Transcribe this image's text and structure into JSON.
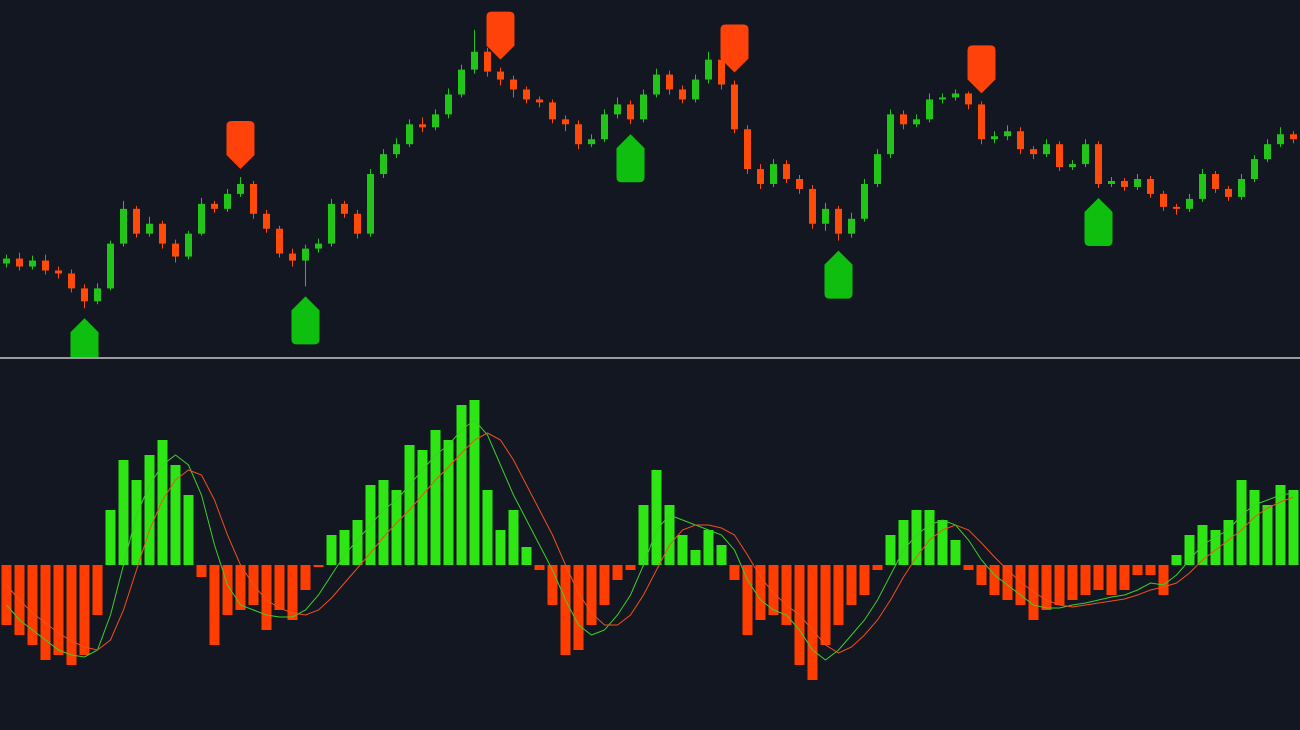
{
  "chart_data": [
    {
      "type": "candlestick",
      "up_color": "#22c41a",
      "down_color": "#ff4a0a",
      "buy_color": "#0fbf0f",
      "sell_color": "#ff420a",
      "ylim": [
        0,
        360
      ],
      "open": [
        95,
        100,
        92,
        98,
        88,
        85,
        70,
        57,
        70,
        115,
        150,
        125,
        135,
        115,
        102,
        125,
        155,
        150,
        165,
        175,
        145,
        130,
        105,
        98,
        110,
        115,
        155,
        145,
        125,
        185,
        205,
        215,
        235,
        232,
        245,
        265,
        290,
        308,
        288,
        280,
        270,
        260,
        257,
        240,
        235,
        215,
        220,
        245,
        255,
        240,
        265,
        285,
        270,
        260,
        280,
        300,
        275,
        230,
        190,
        175,
        195,
        180,
        170,
        135,
        150,
        125,
        140,
        175,
        205,
        245,
        235,
        240,
        260,
        262,
        266,
        255,
        220,
        223,
        228,
        210,
        205,
        215,
        192,
        195,
        215,
        175,
        178,
        172,
        180,
        165,
        152,
        150,
        160,
        185,
        170,
        162,
        180,
        200,
        215,
        225
      ],
      "close": [
        100,
        92,
        98,
        88,
        85,
        70,
        57,
        70,
        115,
        150,
        125,
        135,
        115,
        102,
        125,
        155,
        150,
        165,
        175,
        145,
        130,
        105,
        98,
        110,
        115,
        155,
        145,
        125,
        185,
        205,
        215,
        235,
        232,
        245,
        265,
        290,
        308,
        288,
        280,
        270,
        260,
        257,
        240,
        235,
        215,
        220,
        245,
        255,
        240,
        265,
        285,
        270,
        260,
        280,
        300,
        275,
        230,
        190,
        175,
        195,
        180,
        170,
        135,
        150,
        125,
        140,
        175,
        205,
        245,
        235,
        240,
        260,
        262,
        266,
        255,
        220,
        223,
        228,
        210,
        205,
        215,
        192,
        195,
        215,
        175,
        178,
        172,
        180,
        165,
        152,
        150,
        160,
        185,
        170,
        162,
        180,
        200,
        215,
        225,
        220
      ],
      "high": [
        104,
        106,
        103,
        104,
        92,
        89,
        74,
        75,
        118,
        158,
        153,
        142,
        138,
        119,
        128,
        161,
        158,
        170,
        182,
        178,
        149,
        133,
        110,
        114,
        120,
        160,
        158,
        149,
        190,
        210,
        221,
        240,
        242,
        250,
        271,
        295,
        330,
        312,
        292,
        284,
        273,
        263,
        260,
        244,
        239,
        225,
        250,
        262,
        259,
        270,
        291,
        289,
        274,
        285,
        308,
        304,
        279,
        234,
        195,
        200,
        199,
        184,
        174,
        156,
        153,
        146,
        180,
        210,
        250,
        249,
        245,
        266,
        266,
        270,
        268,
        258,
        228,
        234,
        232,
        213,
        220,
        218,
        199,
        220,
        218,
        182,
        181,
        185,
        183,
        168,
        155,
        165,
        190,
        188,
        173,
        185,
        204,
        220,
        232,
        228
      ],
      "low": [
        91,
        88,
        89,
        84,
        80,
        66,
        50,
        54,
        68,
        112,
        121,
        122,
        110,
        96,
        99,
        123,
        146,
        147,
        162,
        140,
        126,
        101,
        92,
        72,
        106,
        112,
        141,
        120,
        122,
        181,
        201,
        212,
        227,
        229,
        241,
        262,
        286,
        283,
        274,
        262,
        256,
        252,
        236,
        228,
        210,
        212,
        217,
        241,
        235,
        237,
        262,
        265,
        256,
        257,
        276,
        270,
        226,
        185,
        170,
        172,
        176,
        165,
        130,
        128,
        118,
        121,
        137,
        172,
        201,
        230,
        232,
        237,
        256,
        259,
        250,
        215,
        216,
        219,
        205,
        200,
        202,
        188,
        189,
        192,
        171,
        172,
        168,
        169,
        161,
        148,
        144,
        147,
        157,
        166,
        158,
        159,
        177,
        197,
        212,
        216
      ],
      "signals": {
        "buy": [
          6,
          23,
          48,
          64,
          84
        ],
        "sell": [
          18,
          38,
          56,
          75
        ]
      }
    },
    {
      "type": "macd",
      "positive_color": "#2ee614",
      "negative_color": "#ff3d00",
      "ylim": [
        -165,
        205
      ],
      "values": [
        -60,
        -70,
        -80,
        -95,
        -90,
        -100,
        -90,
        -50,
        55,
        105,
        85,
        110,
        125,
        100,
        70,
        -12,
        -80,
        -50,
        -45,
        -40,
        -65,
        -45,
        -55,
        -25,
        -2,
        30,
        35,
        45,
        80,
        85,
        75,
        120,
        115,
        135,
        125,
        160,
        165,
        75,
        35,
        55,
        18,
        -5,
        -40,
        -90,
        -85,
        -60,
        -40,
        -15,
        -5,
        60,
        95,
        60,
        30,
        15,
        35,
        20,
        -15,
        -70,
        -55,
        -50,
        -60,
        -100,
        -115,
        -80,
        -60,
        -40,
        -30,
        -5,
        30,
        45,
        55,
        55,
        45,
        25,
        -5,
        -20,
        -30,
        -35,
        -40,
        -55,
        -45,
        -40,
        -35,
        -30,
        -25,
        -30,
        -25,
        -10,
        -10,
        -30,
        10,
        30,
        40,
        35,
        45,
        85,
        75,
        60,
        80,
        75
      ],
      "lines": [
        {
          "color": "#3ccf2a",
          "values": [
            -40,
            -55,
            -65,
            -75,
            -85,
            -90,
            -92,
            -85,
            -50,
            0,
            50,
            80,
            100,
            110,
            100,
            70,
            20,
            -20,
            -40,
            -45,
            -50,
            -52,
            -52,
            -45,
            -30,
            -10,
            10,
            25,
            40,
            55,
            65,
            80,
            95,
            110,
            120,
            135,
            145,
            130,
            100,
            70,
            45,
            20,
            -5,
            -35,
            -60,
            -70,
            -65,
            -50,
            -30,
            0,
            35,
            50,
            45,
            40,
            35,
            30,
            15,
            -15,
            -35,
            -45,
            -50,
            -65,
            -85,
            -95,
            -85,
            -70,
            -55,
            -35,
            -10,
            15,
            30,
            40,
            45,
            40,
            25,
            5,
            -10,
            -20,
            -30,
            -40,
            -43,
            -43,
            -40,
            -38,
            -35,
            -32,
            -30,
            -25,
            -18,
            -20,
            -10,
            5,
            20,
            28,
            35,
            50,
            60,
            65,
            70,
            72
          ]
        },
        {
          "color": "#f0501e",
          "values": [
            -20,
            -35,
            -48,
            -58,
            -68,
            -76,
            -82,
            -85,
            -75,
            -45,
            -5,
            35,
            65,
            85,
            95,
            90,
            65,
            30,
            0,
            -20,
            -35,
            -43,
            -48,
            -50,
            -45,
            -33,
            -18,
            -3,
            12,
            28,
            42,
            55,
            70,
            85,
            98,
            112,
            125,
            132,
            125,
            105,
            80,
            55,
            30,
            0,
            -28,
            -48,
            -60,
            -60,
            -50,
            -30,
            -5,
            20,
            35,
            40,
            40,
            37,
            30,
            10,
            -12,
            -28,
            -40,
            -50,
            -65,
            -80,
            -88,
            -82,
            -70,
            -55,
            -35,
            -12,
            8,
            25,
            35,
            40,
            35,
            22,
            8,
            -5,
            -17,
            -27,
            -35,
            -40,
            -42,
            -40,
            -38,
            -36,
            -34,
            -30,
            -25,
            -22,
            -18,
            -8,
            5,
            15,
            25,
            35,
            48,
            57,
            63,
            68
          ]
        }
      ]
    }
  ]
}
